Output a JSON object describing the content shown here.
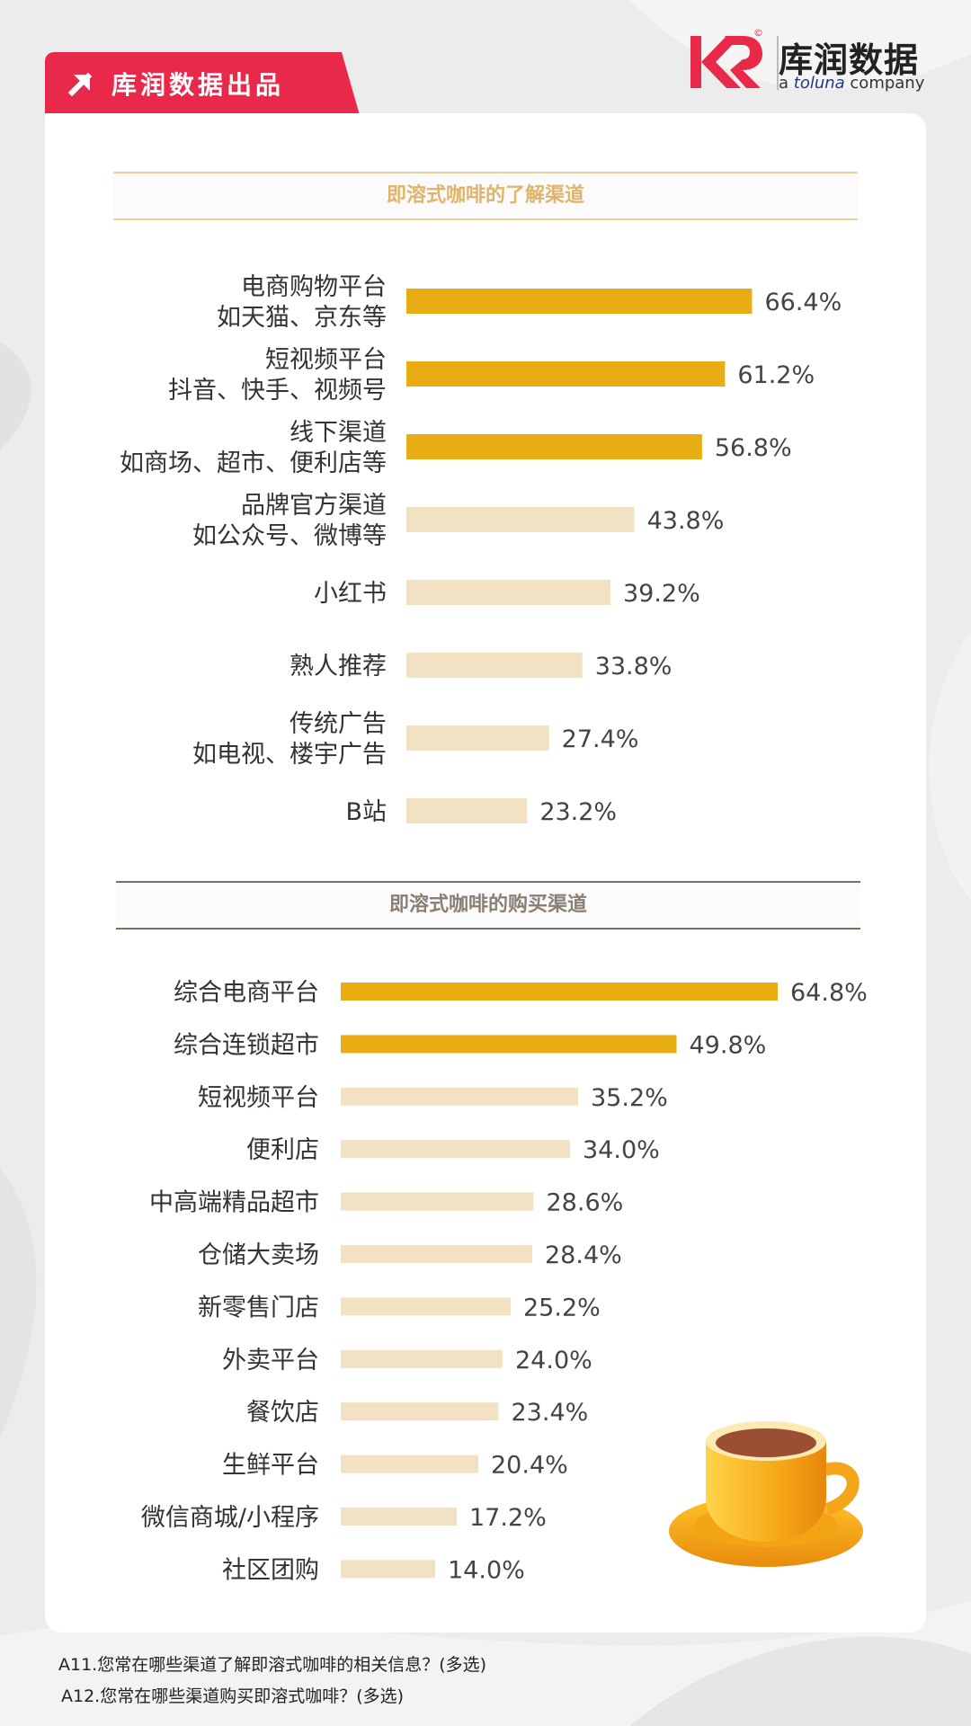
{
  "header": {
    "tag_text": "库润数据出品",
    "logo_cn": "库润数据",
    "logo_en_prefix": "a ",
    "logo_en_brand": "toluna",
    "logo_en_suffix": " company",
    "logo_reg": "©"
  },
  "colors": {
    "highlight_bar": "#e8ad12",
    "normal_bar": "#f2e1c3",
    "tag_red": "#e8294a"
  },
  "chart_data": [
    {
      "type": "bar",
      "orientation": "horizontal",
      "title": "即溶式咖啡的了解渠道",
      "categories": [
        [
          "电商购物平台",
          "如天猫、京东等"
        ],
        [
          "短视频平台",
          "抖音、快手、视频号"
        ],
        [
          "线下渠道",
          "如商场、超市、便利店等"
        ],
        [
          "品牌官方渠道",
          "如公众号、微博等"
        ],
        [
          "小红书"
        ],
        [
          "熟人推荐"
        ],
        [
          "传统广告",
          "如电视、楼宇广告"
        ],
        [
          "B站"
        ]
      ],
      "values": [
        66.4,
        61.2,
        56.8,
        43.8,
        39.2,
        33.8,
        27.4,
        23.2
      ],
      "value_labels": [
        "66.4%",
        "61.2%",
        "56.8%",
        "43.8%",
        "39.2%",
        "33.8%",
        "27.4%",
        "23.2%"
      ],
      "highlight_top": 3,
      "xlim": [
        0,
        100
      ],
      "grid": false
    },
    {
      "type": "bar",
      "orientation": "horizontal",
      "title": "即溶式咖啡的购买渠道",
      "categories": [
        [
          "综合电商平台"
        ],
        [
          "综合连锁超市"
        ],
        [
          "短视频平台"
        ],
        [
          "便利店"
        ],
        [
          "中高端精品超市"
        ],
        [
          "仓储大卖场"
        ],
        [
          "新零售门店"
        ],
        [
          "外卖平台"
        ],
        [
          "餐饮店"
        ],
        [
          "生鲜平台"
        ],
        [
          "微信商城/小程序"
        ],
        [
          "社区团购"
        ]
      ],
      "values": [
        64.8,
        49.8,
        35.2,
        34.0,
        28.6,
        28.4,
        25.2,
        24.0,
        23.4,
        20.4,
        17.2,
        14.0
      ],
      "value_labels": [
        "64.8%",
        "49.8%",
        "35.2%",
        "34.0%",
        "28.6%",
        "28.4%",
        "25.2%",
        "24.0%",
        "23.4%",
        "20.4%",
        "17.2%",
        "14.0%"
      ],
      "highlight_top": 2,
      "xlim": [
        0,
        100
      ],
      "grid": false
    }
  ],
  "footnotes": [
    "A11.您常在哪些渠道了解即溶式咖啡的相关信息？(多选)",
    "A12.您常在哪些渠道购买即溶式咖啡？(多选)"
  ]
}
